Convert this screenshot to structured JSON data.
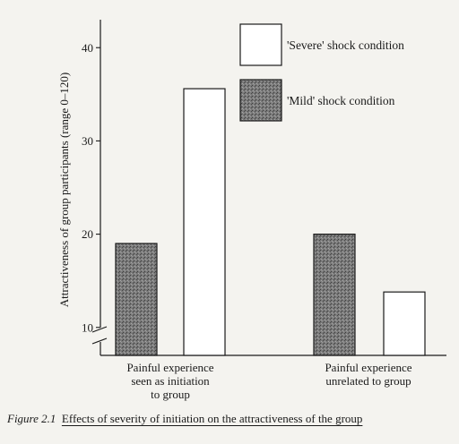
{
  "caption": {
    "figure_number": "Figure 2.1",
    "text": "Effects of severity of initiation on the attractiveness of the group"
  },
  "colors": {
    "severe": "#ffffff",
    "mild": "#6f6f6f",
    "axis": "#1a1a1a"
  },
  "chart_data": {
    "type": "bar",
    "title": "",
    "xlabel": "",
    "ylabel": "Attractiveness of group participants (range 0–120)",
    "categories": [
      "Painful experience seen as initiation to group",
      "Painful experience unrelated to group"
    ],
    "category_lines": [
      [
        "Painful experience",
        "seen as initiation",
        "to group"
      ],
      [
        "Painful experience",
        "unrelated to group"
      ]
    ],
    "series": [
      {
        "name": "'Mild' shock condition",
        "values": [
          19,
          20
        ]
      },
      {
        "name": "'Severe' shock condition",
        "values": [
          35.6,
          13.8
        ]
      }
    ],
    "ylim": [
      7,
      43
    ],
    "yticks": [
      10,
      20,
      30,
      40
    ],
    "axis_break": true,
    "grid": false,
    "legend": {
      "placement": "top-right",
      "entries": [
        "'Severe' shock condition",
        "'Mild' shock condition"
      ]
    }
  }
}
